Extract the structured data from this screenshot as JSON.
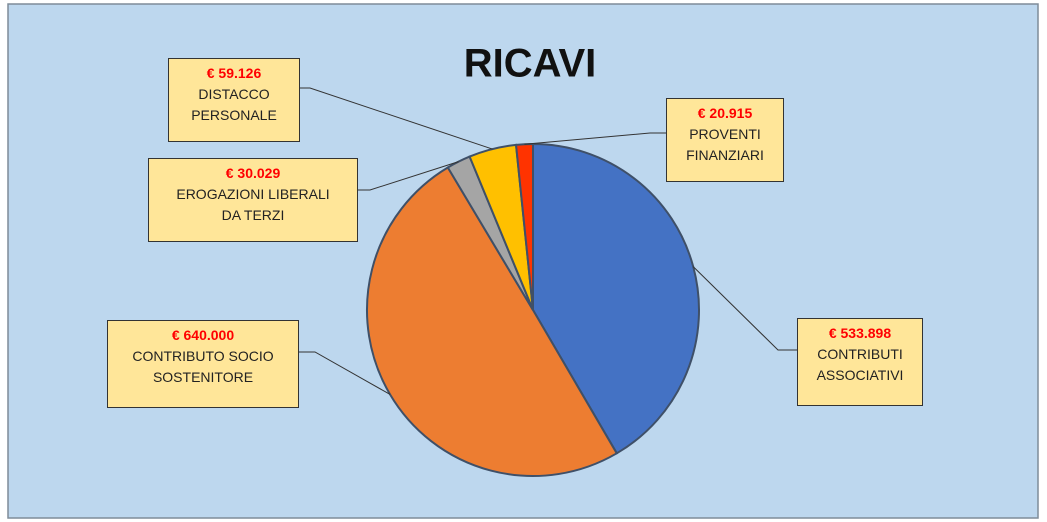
{
  "chart_data": {
    "type": "pie",
    "title": "RICAVI",
    "categories": [
      "CONTRIBUTI\nASSOCIATIVI",
      "CONTRIBUTO SOCIO\nSOSTENITORE",
      "EROGAZIONI LIBERALI\nDA TERZI",
      "DISTACCO\nPERSONALE",
      "PROVENTI\nFINANZIARI"
    ],
    "values": [
      533898,
      640000,
      30029,
      59126,
      20915
    ],
    "value_labels": [
      "€ 533.898",
      "€ 640.000",
      "€ 30.029",
      "€ 59.126",
      "€ 20.915"
    ],
    "colors": [
      "#4472c4",
      "#ed7d31",
      "#a5a5a5",
      "#ffc000",
      "#ff3300"
    ]
  }
}
